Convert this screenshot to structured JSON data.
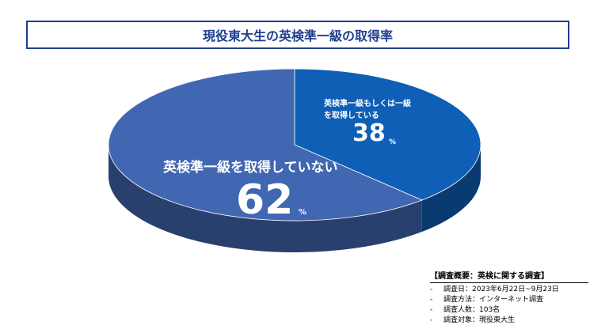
{
  "title": "現役東大生の英検準一級の取得率",
  "chart_data": {
    "type": "pie",
    "title": "現役東大生の英検準一級の取得率",
    "categories": [
      "英検準一級もしくは一級を取得している",
      "英検準一級を取得していない"
    ],
    "values": [
      38,
      62
    ],
    "unit": "%",
    "colors": [
      "#0e5fb5",
      "#4267b2"
    ],
    "labels": [
      {
        "line1": "英検準一級もしくは一級",
        "line2": "を取得している",
        "value": "38",
        "unit": "%"
      },
      {
        "line1": "英検準一級を取得していない",
        "value": "62",
        "unit": "%"
      }
    ]
  },
  "survey": {
    "title": "【調査概要：英検に関する調査】",
    "items": [
      {
        "bullet": "-",
        "text": "調査日：2023年6月22日~9月23日"
      },
      {
        "bullet": "-",
        "text": "調査方法：インターネット調査"
      },
      {
        "bullet": "-",
        "text": "調査人数：103名"
      },
      {
        "bullet": "-",
        "text": "調査対象：現役東大生"
      }
    ]
  }
}
